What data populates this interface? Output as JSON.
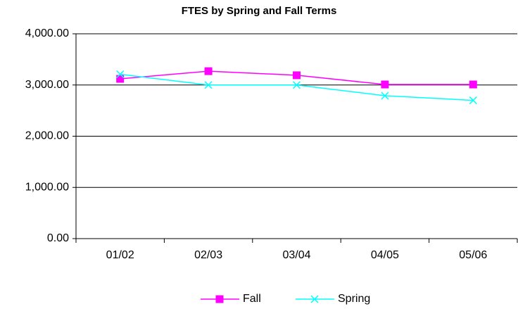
{
  "chart_data": {
    "type": "line",
    "title": "FTES by Spring and Fall Terms",
    "categories": [
      "01/02",
      "02/03",
      "03/04",
      "04/05",
      "05/06"
    ],
    "series": [
      {
        "name": "Fall",
        "color": "#ff00ff",
        "marker": "square",
        "values": [
          3120,
          3270,
          3190,
          3010,
          3010
        ]
      },
      {
        "name": "Spring",
        "color": "#00ffff",
        "marker": "x",
        "values": [
          3210,
          3000,
          3000,
          2790,
          2700
        ]
      }
    ],
    "ylim": [
      0,
      4000
    ],
    "yticks": [
      {
        "value": 0,
        "label": "0.00"
      },
      {
        "value": 1000,
        "label": "1,000.00"
      },
      {
        "value": 2000,
        "label": "2,000.00"
      },
      {
        "value": 3000,
        "label": "3,000.00"
      },
      {
        "value": 4000,
        "label": "4,000.00"
      }
    ],
    "grid": true,
    "legend": "bottom"
  }
}
